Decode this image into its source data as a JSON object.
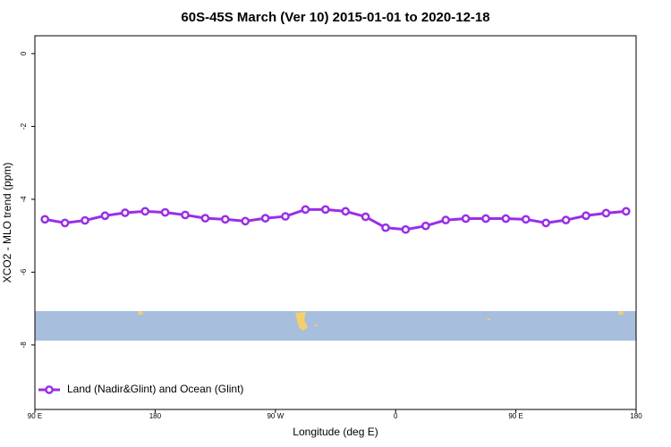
{
  "chart_data": {
    "type": "line",
    "title": "60S-45S March (Ver 10)   2015-01-01 to 2020-12-18",
    "x_label": "Longitude (deg E)",
    "y_label": "XCO2 - MLO trend (ppm)",
    "x": [
      97.5,
      112.5,
      127.5,
      142.5,
      157.5,
      172.5,
      187.5,
      202.5,
      217.5,
      232.5,
      247.5,
      262.5,
      277.5,
      292.5,
      307.5,
      322.5,
      337.5,
      352.5,
      367.5,
      382.5,
      397.5,
      412.5,
      427.5,
      442.5,
      457.5,
      472.5,
      487.5,
      502.5,
      517.5,
      532.5
    ],
    "series": [
      {
        "name": "Land (Nadir&Glint) and Ocean (Glint)",
        "color": "#9a2ee6",
        "values": [
          -4.55,
          -4.65,
          -4.58,
          -4.45,
          -4.37,
          -4.33,
          -4.36,
          -4.43,
          -4.52,
          -4.55,
          -4.6,
          -4.52,
          -4.47,
          -4.28,
          -4.28,
          -4.33,
          -4.48,
          -4.78,
          -4.83,
          -4.73,
          -4.57,
          -4.53,
          -4.53,
          -4.53,
          -4.55,
          -4.65,
          -4.57,
          -4.45,
          -4.38,
          -4.33
        ]
      }
    ],
    "xlim": [
      90,
      540
    ],
    "xticks": [
      {
        "value": 90,
        "label": "90 E"
      },
      180,
      {
        "value": 270,
        "label": "90 W"
      },
      {
        "value": 360,
        "label": "0"
      },
      {
        "value": 450,
        "label": "90 E"
      },
      {
        "value": 540,
        "label": "180"
      }
    ],
    "ylim": [
      -9.77,
      0.49
    ],
    "yticks": [
      0,
      -2,
      -4,
      -6,
      -8
    ],
    "legend": "bottom-left"
  }
}
